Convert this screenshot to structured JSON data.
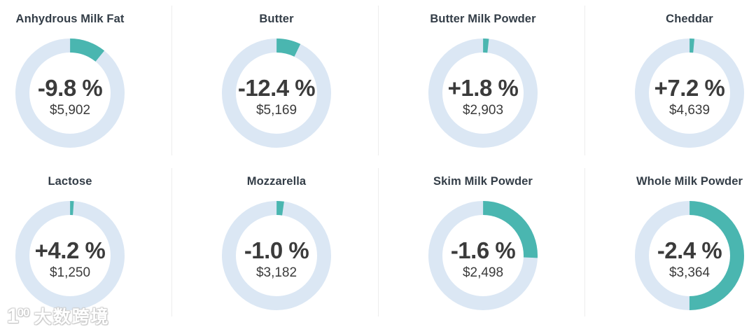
{
  "chart_data": {
    "type": "donut",
    "description": "Grid of 8 donut gauges showing dairy product average prices and percent price change; teal arc length shows each product's share of the ring (clockwise from 12 o'clock) on a pale blue track.",
    "layout": {
      "rows": 2,
      "columns": 4,
      "arc_start": "top",
      "arc_direction": "clockwise"
    },
    "items": [
      {
        "name": "Anhydrous Milk Fat",
        "change_percent": -9.8,
        "change_label": "-9.8 %",
        "price_usd": 5902,
        "price_label": "$5,902",
        "arc_fraction_percent": 10.8
      },
      {
        "name": "Butter",
        "change_percent": -12.4,
        "change_label": "-12.4 %",
        "price_usd": 5169,
        "price_label": "$5,169",
        "arc_fraction_percent": 7.2
      },
      {
        "name": "Butter Milk Powder",
        "change_percent": 1.8,
        "change_label": "+1.8 %",
        "price_usd": 2903,
        "price_label": "$2,903",
        "arc_fraction_percent": 1.7
      },
      {
        "name": "Cheddar",
        "change_percent": 7.2,
        "change_label": "+7.2 %",
        "price_usd": 4639,
        "price_label": "$4,639",
        "arc_fraction_percent": 1.4
      },
      {
        "name": "Lactose",
        "change_percent": 4.2,
        "change_label": "+4.2 %",
        "price_usd": 1250,
        "price_label": "$1,250",
        "arc_fraction_percent": 1.1
      },
      {
        "name": "Mozzarella",
        "change_percent": -1.0,
        "change_label": "-1.0 %",
        "price_usd": 3182,
        "price_label": "$3,182",
        "arc_fraction_percent": 2.2
      },
      {
        "name": "Skim Milk Powder",
        "change_percent": -1.6,
        "change_label": "-1.6 %",
        "price_usd": 2498,
        "price_label": "$2,498",
        "arc_fraction_percent": 25.7
      },
      {
        "name": "Whole Milk Powder",
        "change_percent": -2.4,
        "change_label": "-2.4 %",
        "price_usd": 3364,
        "price_label": "$3,364",
        "arc_fraction_percent": 50.0
      }
    ],
    "colors": {
      "arc_teal": "#4ab6b0",
      "track_blue": "#dbe7f4",
      "title_text": "#333d47",
      "value_text": "#3b3b3b",
      "divider": "#ededed"
    }
  },
  "watermark": {
    "logo_leading": "1",
    "logo_oo": "00",
    "brand_text": "大数跨境"
  }
}
